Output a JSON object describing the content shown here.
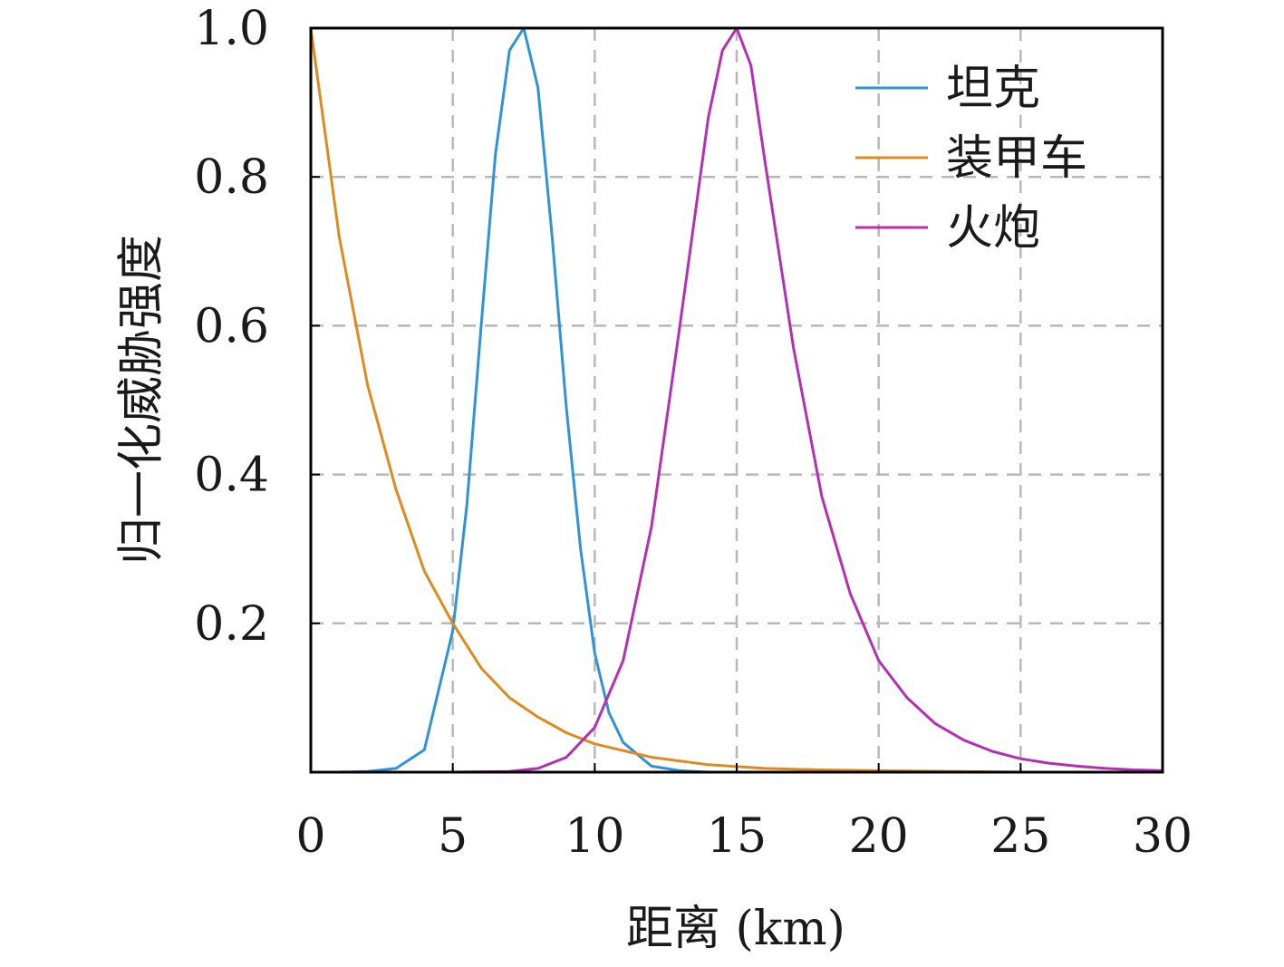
{
  "chart_data": {
    "type": "line",
    "title": "",
    "xlabel": "距离 (km)",
    "ylabel": "归一化威胁强度",
    "xlim": [
      0,
      30
    ],
    "ylim": [
      0,
      1.0
    ],
    "x_ticks": [
      "0",
      "5",
      "10",
      "15",
      "20",
      "25",
      "30"
    ],
    "y_ticks": [
      "0.2",
      "0.4",
      "0.6",
      "0.8",
      "1.0"
    ],
    "grid": true,
    "legend_position": "top-right",
    "series": [
      {
        "name": "坦克",
        "color": "#2f93d6",
        "x": [
          0,
          1,
          2,
          3,
          4,
          5,
          5.5,
          6,
          6.5,
          7,
          7.5,
          8,
          8.5,
          9,
          9.5,
          10,
          10.5,
          11,
          12,
          13,
          14,
          16,
          20,
          30
        ],
        "y": [
          0.0,
          0.0,
          0.001,
          0.005,
          0.03,
          0.19,
          0.36,
          0.6,
          0.83,
          0.97,
          1.0,
          0.92,
          0.72,
          0.49,
          0.3,
          0.16,
          0.08,
          0.04,
          0.008,
          0.002,
          0.0,
          0.0,
          0.0,
          0.0
        ]
      },
      {
        "name": "装甲车",
        "color": "#e08a1e",
        "x": [
          0,
          1,
          2,
          3,
          4,
          5,
          6,
          7,
          8,
          9,
          10,
          12,
          14,
          16,
          18,
          20,
          25,
          30
        ],
        "y": [
          1.0,
          0.72,
          0.52,
          0.38,
          0.27,
          0.2,
          0.14,
          0.1,
          0.074,
          0.053,
          0.038,
          0.02,
          0.01,
          0.005,
          0.003,
          0.002,
          0.0,
          0.0
        ]
      },
      {
        "name": "火炮",
        "color": "#b52fb5",
        "x": [
          0,
          5,
          7,
          8,
          9,
          10,
          11,
          12,
          13,
          14,
          14.5,
          15,
          15.5,
          16,
          17,
          18,
          19,
          20,
          21,
          22,
          23,
          24,
          25,
          26,
          27,
          28,
          29,
          30
        ],
        "y": [
          0.0,
          0.0,
          0.001,
          0.005,
          0.02,
          0.06,
          0.15,
          0.33,
          0.6,
          0.88,
          0.97,
          1.0,
          0.95,
          0.82,
          0.57,
          0.37,
          0.24,
          0.15,
          0.1,
          0.065,
          0.043,
          0.028,
          0.018,
          0.012,
          0.008,
          0.005,
          0.003,
          0.002
        ]
      }
    ]
  }
}
